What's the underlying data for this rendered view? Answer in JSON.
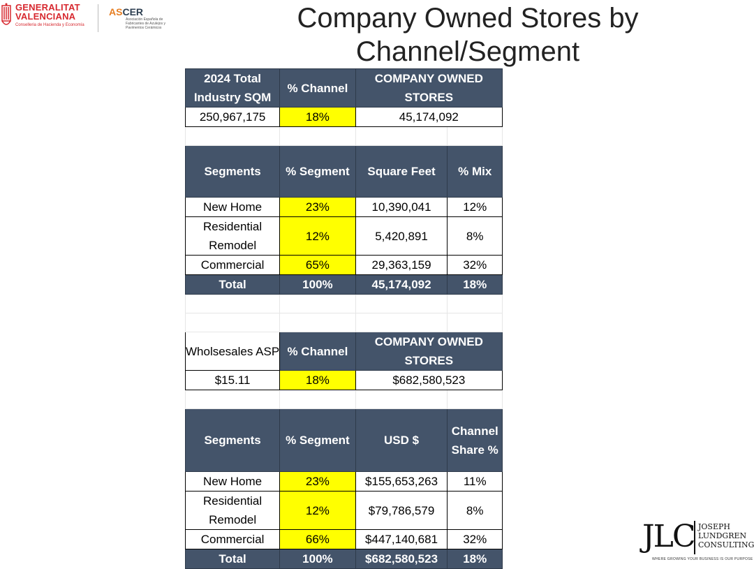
{
  "logos": {
    "gv_line1": "GENERALITAT",
    "gv_line2": "VALENCIANA",
    "gv_line3": "Conselleria de Hacienda y Economía",
    "ascer_as": "AS",
    "ascer_rest": "CER",
    "ascer_sub": "Asociación Española de Fabricantes de Azulejos y Pavimentos Cerámicos",
    "jlc_mark": "JLC",
    "jlc_line1": "JOSEPH",
    "jlc_line2": "LUNDGREN",
    "jlc_line3": "CONSULTING",
    "jlc_tag": "WHERE GROWING YOUR BUSINESS IS OUR PURPOSE"
  },
  "title": {
    "line1": "Company Owned Stores by",
    "line2": "Channel/Segment"
  },
  "sqm_summary": {
    "headers": [
      "2024 Total Industry SQM",
      "% Channel",
      "COMPANY OWNED STORES"
    ],
    "values": [
      "250,967,175",
      "18%",
      "45,174,092"
    ]
  },
  "sqm_segments": {
    "headers": [
      "Segments",
      "% Segment",
      "Square Feet",
      "% Mix"
    ],
    "rows": [
      [
        "New Home",
        "23%",
        "10,390,041",
        "12%"
      ],
      [
        "Residential Remodel",
        "12%",
        "5,420,891",
        "8%"
      ],
      [
        "Commercial",
        "65%",
        "29,363,159",
        "32%"
      ]
    ],
    "total": [
      "Total",
      "100%",
      "45,174,092",
      "18%"
    ]
  },
  "usd_summary": {
    "headers": [
      "Wholsesales ASP",
      "% Channel",
      "COMPANY OWNED STORES"
    ],
    "values": [
      "$15.11",
      "18%",
      "$682,580,523"
    ]
  },
  "usd_segments": {
    "headers": [
      "Segments",
      "% Segment",
      "USD $",
      "Channel Share %"
    ],
    "rows": [
      [
        "New Home",
        "23%",
        "$155,653,263",
        "11%"
      ],
      [
        "Residential Remodel",
        "12%",
        "$79,786,579",
        "8%"
      ],
      [
        "Commercial",
        "66%",
        "$447,140,681",
        "32%"
      ]
    ],
    "total": [
      "Total",
      "100%",
      "$682,580,523",
      "18%"
    ]
  },
  "colors": {
    "header_bg": "#44546a",
    "highlight": "#ffff00",
    "brand_red": "#d7282f"
  }
}
